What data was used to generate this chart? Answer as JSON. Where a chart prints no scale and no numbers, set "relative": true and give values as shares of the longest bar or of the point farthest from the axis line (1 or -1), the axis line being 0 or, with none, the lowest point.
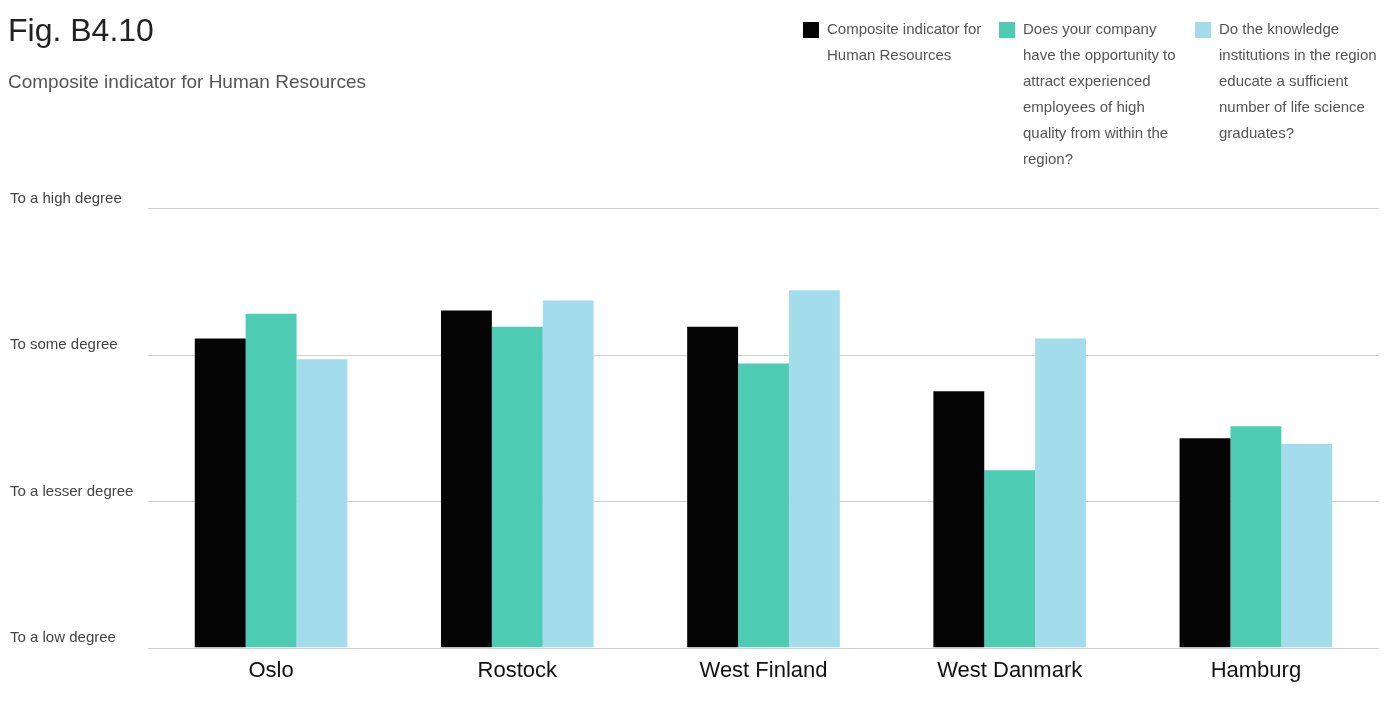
{
  "chart_data": {
    "type": "bar",
    "title": "Fig. B4.10",
    "subtitle": "Composite indicator for Human Resources",
    "relative": true,
    "categories": [
      "Oslo",
      "Rostock",
      "West Finland",
      "West Danmark",
      "Hamburg"
    ],
    "series": [
      {
        "name": "Composite indicator for Human Resources",
        "color": "#050505",
        "values": [
          0.865,
          0.943,
          0.898,
          0.717,
          0.586
        ]
      },
      {
        "name": "Does your company have the opportunity to attract experienced employees of high quality from within the region?",
        "color": "#4ecbb3",
        "values": [
          0.934,
          0.898,
          0.795,
          0.496,
          0.619
        ]
      },
      {
        "name": "Do the knowledge institutions in the region educate a sufficient number of life science graduates?",
        "color": "#a3dcea",
        "values": [
          0.807,
          0.971,
          1,
          0.865,
          0.57
        ]
      }
    ],
    "ref_lines": [
      {
        "axis": "y",
        "value": 0,
        "label": "To a low degree",
        "color": "#cfcfcf"
      },
      {
        "axis": "y",
        "value": 0.41,
        "label": "To a lesser degree",
        "color": "#cfcfcf"
      },
      {
        "axis": "y",
        "value": 0.82,
        "label": "To some degree",
        "color": "#cfcfcf"
      },
      {
        "axis": "y",
        "value": 1.23,
        "label": "To a high degree",
        "color": "#cfcfcf"
      }
    ],
    "legend": "top right"
  }
}
